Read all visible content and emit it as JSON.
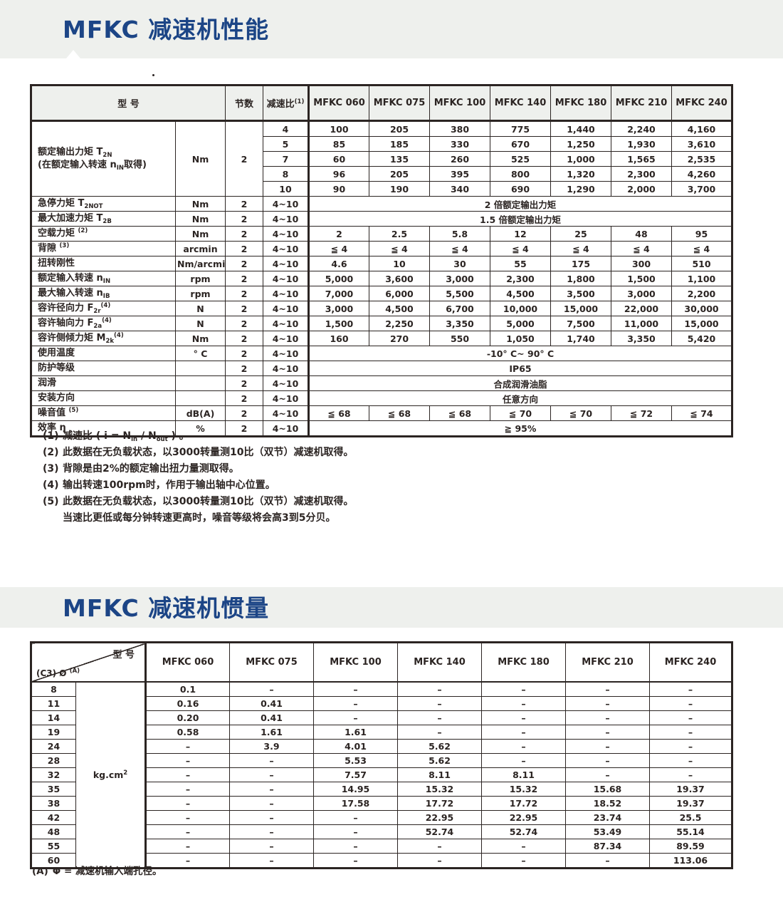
{
  "page": {
    "title_performance": "MFKC 减速机性能",
    "title_inertia": "MFKC 减速机惯量",
    "accent_blue": "#1c4586",
    "band_gray": "#eef0ed",
    "ink": "#2b2422"
  },
  "perf_table": {
    "header": {
      "model_label": "型            号",
      "stages_label": "节数",
      "ratio_label": "减速比",
      "ratio_sup": "(1)",
      "models": [
        "MFKC 060",
        "MFKC 075",
        "MFKC 100",
        "MFKC 140",
        "MFKC 180",
        "MFKC 210",
        "MFKC 240"
      ]
    },
    "torque_block": {
      "label_line1": [
        [
          "额定输出力矩 T",
          "n"
        ],
        [
          "2N",
          "sub"
        ]
      ],
      "label_line2": [
        [
          "(在额定输入转速 n",
          "n"
        ],
        [
          "IN",
          "sub"
        ],
        [
          "取得)",
          "n"
        ]
      ],
      "unit": "Nm",
      "stages": "2",
      "rows": [
        {
          "ratio": "4",
          "values": [
            "100",
            "205",
            "380",
            "775",
            "1,440",
            "2,240",
            "4,160"
          ]
        },
        {
          "ratio": "5",
          "values": [
            "85",
            "185",
            "330",
            "670",
            "1,250",
            "1,930",
            "3,610"
          ]
        },
        {
          "ratio": "7",
          "values": [
            "60",
            "135",
            "260",
            "525",
            "1,000",
            "1,565",
            "2,535"
          ]
        },
        {
          "ratio": "8",
          "values": [
            "96",
            "205",
            "395",
            "800",
            "1,320",
            "2,300",
            "4,260"
          ]
        },
        {
          "ratio": "10",
          "values": [
            "90",
            "190",
            "340",
            "690",
            "1,290",
            "2,000",
            "3,700"
          ]
        }
      ]
    },
    "rows": [
      {
        "label": [
          [
            "急停力矩 T",
            "n"
          ],
          [
            "2NOT",
            "sub"
          ]
        ],
        "unit": "Nm",
        "stages": "2",
        "ratio": "4~10",
        "merged": "2 倍额定输出力矩"
      },
      {
        "label": [
          [
            "最大加速力矩 T",
            "n"
          ],
          [
            "2B",
            "sub"
          ]
        ],
        "unit": "Nm",
        "stages": "2",
        "ratio": "4~10",
        "merged": "1.5 倍额定输出力矩"
      },
      {
        "label": [
          [
            "空载力矩 ",
            "n"
          ],
          [
            "(2)",
            "sup"
          ]
        ],
        "unit": "Nm",
        "stages": "2",
        "ratio": "4~10",
        "values": [
          "2",
          "2.5",
          "5.8",
          "12",
          "25",
          "48",
          "95"
        ]
      },
      {
        "label": [
          [
            "背隙 ",
            "n"
          ],
          [
            "(3)",
            "sup"
          ]
        ],
        "unit": "arcmin",
        "stages": "2",
        "ratio": "4~10",
        "values": [
          "≦ 4",
          "≦ 4",
          "≦ 4",
          "≦ 4",
          "≦ 4",
          "≦ 4",
          "≦ 4"
        ]
      },
      {
        "label": [
          [
            "扭转刚性",
            "n"
          ]
        ],
        "unit": "Nm/arcmin",
        "stages": "2",
        "ratio": "4~10",
        "values": [
          "4.6",
          "10",
          "30",
          "55",
          "175",
          "300",
          "510"
        ]
      },
      {
        "label": [
          [
            "额定输入转速 n",
            "n"
          ],
          [
            "IN",
            "sub"
          ]
        ],
        "unit": "rpm",
        "stages": "2",
        "ratio": "4~10",
        "values": [
          "5,000",
          "3,600",
          "3,000",
          "2,300",
          "1,800",
          "1,500",
          "1,100"
        ]
      },
      {
        "label": [
          [
            "最大输入转速 n",
            "n"
          ],
          [
            "IB",
            "sub"
          ]
        ],
        "unit": "rpm",
        "stages": "2",
        "ratio": "4~10",
        "values": [
          "7,000",
          "6,000",
          "5,500",
          "4,500",
          "3,500",
          "3,000",
          "2,200"
        ]
      },
      {
        "label": [
          [
            "容许径向力 F",
            "n"
          ],
          [
            "2r",
            "sub"
          ],
          [
            "(4)",
            "sup"
          ]
        ],
        "unit": "N",
        "stages": "2",
        "ratio": "4~10",
        "values": [
          "3,000",
          "4,500",
          "6,700",
          "10,000",
          "15,000",
          "22,000",
          "30,000"
        ]
      },
      {
        "label": [
          [
            "容许轴向力 F",
            "n"
          ],
          [
            "2a",
            "sub"
          ],
          [
            "(4)",
            "sup"
          ]
        ],
        "unit": "N",
        "stages": "2",
        "ratio": "4~10",
        "values": [
          "1,500",
          "2,250",
          "3,350",
          "5,000",
          "7,500",
          "11,000",
          "15,000"
        ]
      },
      {
        "label": [
          [
            "容许侧倾力矩 M",
            "n"
          ],
          [
            "2k",
            "sub"
          ],
          [
            "(4)",
            "sup"
          ]
        ],
        "unit": "Nm",
        "stages": "2",
        "ratio": "4~10",
        "values": [
          "160",
          "270",
          "550",
          "1,050",
          "1,740",
          "3,350",
          "5,420"
        ]
      },
      {
        "label": [
          [
            "使用温度",
            "n"
          ]
        ],
        "unit": "° C",
        "stages": "2",
        "ratio": "4~10",
        "merged": "-10° C~ 90° C"
      },
      {
        "label": [
          [
            "防护等级",
            "n"
          ]
        ],
        "unit": "",
        "stages": "2",
        "ratio": "4~10",
        "merged": "IP65"
      },
      {
        "label": [
          [
            "润滑",
            "n"
          ]
        ],
        "unit": "",
        "stages": "2",
        "ratio": "4~10",
        "merged": "合成润滑油脂"
      },
      {
        "label": [
          [
            "安装方向",
            "n"
          ]
        ],
        "unit": "",
        "stages": "2",
        "ratio": "4~10",
        "merged": "任意方向"
      },
      {
        "label": [
          [
            "噪音值 ",
            "n"
          ],
          [
            "(5)",
            "sup"
          ]
        ],
        "unit": "dB(A)",
        "stages": "2",
        "ratio": "4~10",
        "values": [
          "≦ 68",
          "≦ 68",
          "≦ 68",
          "≦ 70",
          "≦ 70",
          "≦ 72",
          "≦ 74"
        ]
      },
      {
        "label": [
          [
            "效率 η",
            "n"
          ]
        ],
        "unit": "%",
        "stages": "2",
        "ratio": "4~10",
        "merged": "≧ 95%"
      }
    ]
  },
  "perf_footnotes": [
    {
      "marker": "(1)",
      "text": [
        [
          "减速比 ( i = N",
          "n"
        ],
        [
          "in",
          "sub"
        ],
        [
          " / N",
          "n"
        ],
        [
          "out",
          "sub"
        ],
        [
          " ) 。",
          "n"
        ]
      ]
    },
    {
      "marker": "(2)",
      "text": [
        [
          "此数据在无负载状态，以3000转量测10比（双节）减速机取得。",
          "n"
        ]
      ]
    },
    {
      "marker": "(3)",
      "text": [
        [
          "背隙是由2%的额定输出扭力量测取得。",
          "n"
        ]
      ]
    },
    {
      "marker": "(4)",
      "text": [
        [
          "输出转速100rpm时，作用于输出轴中心位置。",
          "n"
        ]
      ]
    },
    {
      "marker": "(5)",
      "text": [
        [
          "此数据在无负载状态，以3000转量测10比（双节）减速机取得。",
          "n"
        ]
      ]
    },
    {
      "marker": "",
      "text": [
        [
          "当速比更低或每分钟转速更高时，噪音等级将会高3到5分贝。",
          "n"
        ]
      ]
    }
  ],
  "inertia_table": {
    "corner_top": "型 号",
    "corner_bottom": [
      [
        "(C3) Ø ",
        "n"
      ],
      [
        "(A)",
        "sup"
      ]
    ],
    "models": [
      "MFKC 060",
      "MFKC 075",
      "MFKC 100",
      "MFKC 140",
      "MFKC 180",
      "MFKC 210",
      "MFKC 240"
    ],
    "unit": [
      [
        "kg.cm",
        "n"
      ],
      [
        "2",
        "sup"
      ]
    ],
    "rows": [
      {
        "d": "8",
        "values": [
          "0.1",
          "–",
          "–",
          "–",
          "–",
          "–",
          "–"
        ]
      },
      {
        "d": "11",
        "values": [
          "0.16",
          "0.41",
          "–",
          "–",
          "–",
          "–",
          "–"
        ]
      },
      {
        "d": "14",
        "values": [
          "0.20",
          "0.41",
          "–",
          "–",
          "–",
          "–",
          "–"
        ]
      },
      {
        "d": "19",
        "values": [
          "0.58",
          "1.61",
          "1.61",
          "–",
          "–",
          "–",
          "–"
        ]
      },
      {
        "d": "24",
        "values": [
          "–",
          "3.9",
          "4.01",
          "5.62",
          "–",
          "–",
          "–"
        ]
      },
      {
        "d": "28",
        "values": [
          "–",
          "–",
          "5.53",
          "5.62",
          "–",
          "–",
          "–"
        ]
      },
      {
        "d": "32",
        "values": [
          "–",
          "–",
          "7.57",
          "8.11",
          "8.11",
          "–",
          "–"
        ]
      },
      {
        "d": "35",
        "values": [
          "–",
          "–",
          "14.95",
          "15.32",
          "15.32",
          "15.68",
          "19.37"
        ]
      },
      {
        "d": "38",
        "values": [
          "–",
          "–",
          "17.58",
          "17.72",
          "17.72",
          "18.52",
          "19.37"
        ]
      },
      {
        "d": "42",
        "values": [
          "–",
          "–",
          "–",
          "22.95",
          "22.95",
          "23.74",
          "25.5"
        ]
      },
      {
        "d": "48",
        "values": [
          "–",
          "–",
          "–",
          "52.74",
          "52.74",
          "53.49",
          "55.14"
        ]
      },
      {
        "d": "55",
        "values": [
          "–",
          "–",
          "–",
          "–",
          "–",
          "87.34",
          "89.59"
        ]
      },
      {
        "d": "60",
        "values": [
          "–",
          "–",
          "–",
          "–",
          "–",
          "–",
          "113.06"
        ]
      }
    ]
  },
  "inertia_footnote": {
    "marker": "(A)",
    "text": "Φ = 减速机输入端孔径。"
  }
}
